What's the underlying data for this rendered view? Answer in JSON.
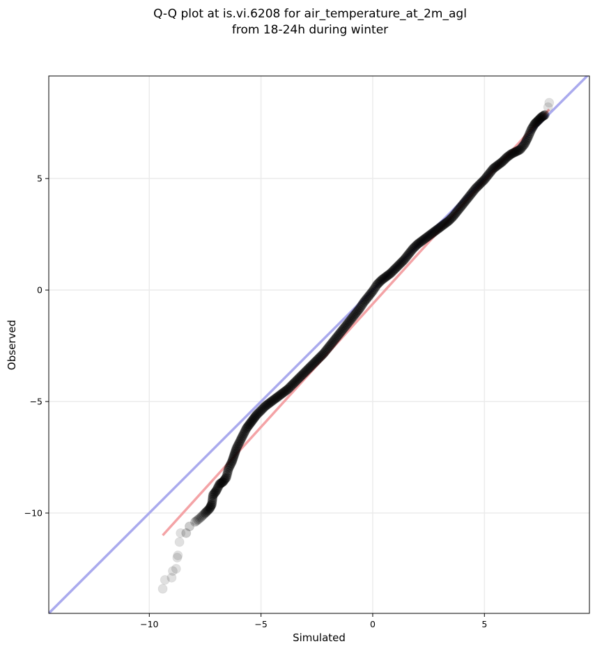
{
  "chart_data": {
    "type": "scatter",
    "title_line1": "Q-Q plot at is.vi.6208 for air_temperature_at_2m_agl",
    "title_line2": "from 18-24h during winter",
    "xlabel": "Simulated",
    "ylabel": "Observed",
    "xlim": [
      -14.5,
      9.7
    ],
    "ylim": [
      -14.5,
      9.6
    ],
    "xticks": [
      -10,
      -5,
      0,
      5
    ],
    "yticks": [
      -10,
      -5,
      0,
      5
    ],
    "xtick_labels": [
      "−10",
      "−5",
      "0",
      "5"
    ],
    "ytick_labels": [
      "−10",
      "−5",
      "0",
      "5"
    ],
    "grid": true,
    "point_color": "#000000",
    "reference_line_color": "#aaaaee",
    "fit_line_color": "#f4a3a6",
    "reference_line": {
      "x": [
        -14.5,
        9.7
      ],
      "y": [
        -14.5,
        9.7
      ]
    },
    "fit_line": {
      "x": [
        -9.4,
        7.9
      ],
      "y": [
        -11.0,
        8.1
      ]
    },
    "points": [
      [
        -9.4,
        -13.4
      ],
      [
        -9.3,
        -13.0
      ],
      [
        -9.0,
        -12.9
      ],
      [
        -8.95,
        -12.6
      ],
      [
        -8.8,
        -12.5
      ],
      [
        -8.75,
        -12.0
      ],
      [
        -8.72,
        -11.9
      ],
      [
        -8.65,
        -11.3
      ],
      [
        -8.6,
        -10.9
      ],
      [
        -8.35,
        -10.9
      ],
      [
        -8.2,
        -10.6
      ],
      [
        -7.95,
        -10.4
      ],
      [
        -7.7,
        -10.2
      ],
      [
        -7.5,
        -10.0
      ],
      [
        -7.3,
        -9.8
      ],
      [
        -7.2,
        -9.6
      ],
      [
        -7.15,
        -9.2
      ],
      [
        -7.0,
        -9.0
      ],
      [
        -6.85,
        -8.7
      ],
      [
        -6.7,
        -8.6
      ],
      [
        -6.55,
        -8.4
      ],
      [
        -6.45,
        -8.0
      ],
      [
        -6.3,
        -7.7
      ],
      [
        -6.2,
        -7.4
      ],
      [
        -6.1,
        -7.1
      ],
      [
        -5.95,
        -6.8
      ],
      [
        -5.8,
        -6.5
      ],
      [
        -5.65,
        -6.2
      ],
      [
        -5.5,
        -6.0
      ],
      [
        -5.35,
        -5.8
      ],
      [
        -5.2,
        -5.6
      ],
      [
        -5.0,
        -5.4
      ],
      [
        -4.8,
        -5.2
      ],
      [
        -4.6,
        -5.05
      ],
      [
        -4.4,
        -4.9
      ],
      [
        -4.2,
        -4.75
      ],
      [
        -4.0,
        -4.6
      ],
      [
        -3.8,
        -4.45
      ],
      [
        -3.6,
        -4.25
      ],
      [
        -3.4,
        -4.05
      ],
      [
        -3.2,
        -3.85
      ],
      [
        -3.0,
        -3.65
      ],
      [
        -2.8,
        -3.45
      ],
      [
        -2.6,
        -3.25
      ],
      [
        -2.4,
        -3.05
      ],
      [
        -2.2,
        -2.85
      ],
      [
        -2.0,
        -2.6
      ],
      [
        -1.8,
        -2.35
      ],
      [
        -1.6,
        -2.1
      ],
      [
        -1.4,
        -1.85
      ],
      [
        -1.2,
        -1.6
      ],
      [
        -1.0,
        -1.35
      ],
      [
        -0.8,
        -1.1
      ],
      [
        -0.6,
        -0.85
      ],
      [
        -0.4,
        -0.55
      ],
      [
        -0.2,
        -0.3
      ],
      [
        0.0,
        -0.05
      ],
      [
        0.2,
        0.25
      ],
      [
        0.4,
        0.45
      ],
      [
        0.6,
        0.6
      ],
      [
        0.8,
        0.75
      ],
      [
        1.0,
        0.95
      ],
      [
        1.2,
        1.15
      ],
      [
        1.4,
        1.35
      ],
      [
        1.6,
        1.6
      ],
      [
        1.8,
        1.85
      ],
      [
        2.0,
        2.05
      ],
      [
        2.2,
        2.2
      ],
      [
        2.4,
        2.35
      ],
      [
        2.6,
        2.5
      ],
      [
        2.8,
        2.65
      ],
      [
        3.0,
        2.8
      ],
      [
        3.2,
        2.95
      ],
      [
        3.4,
        3.1
      ],
      [
        3.6,
        3.3
      ],
      [
        3.8,
        3.55
      ],
      [
        4.0,
        3.8
      ],
      [
        4.2,
        4.05
      ],
      [
        4.4,
        4.3
      ],
      [
        4.6,
        4.55
      ],
      [
        4.8,
        4.75
      ],
      [
        5.0,
        4.95
      ],
      [
        5.2,
        5.2
      ],
      [
        5.4,
        5.45
      ],
      [
        5.6,
        5.6
      ],
      [
        5.8,
        5.75
      ],
      [
        6.0,
        5.95
      ],
      [
        6.2,
        6.1
      ],
      [
        6.4,
        6.2
      ],
      [
        6.6,
        6.3
      ],
      [
        6.8,
        6.55
      ],
      [
        6.95,
        6.85
      ],
      [
        7.1,
        7.2
      ],
      [
        7.25,
        7.45
      ],
      [
        7.4,
        7.6
      ],
      [
        7.55,
        7.75
      ],
      [
        7.7,
        7.85
      ],
      [
        7.85,
        8.2
      ],
      [
        7.9,
        8.4
      ]
    ]
  }
}
